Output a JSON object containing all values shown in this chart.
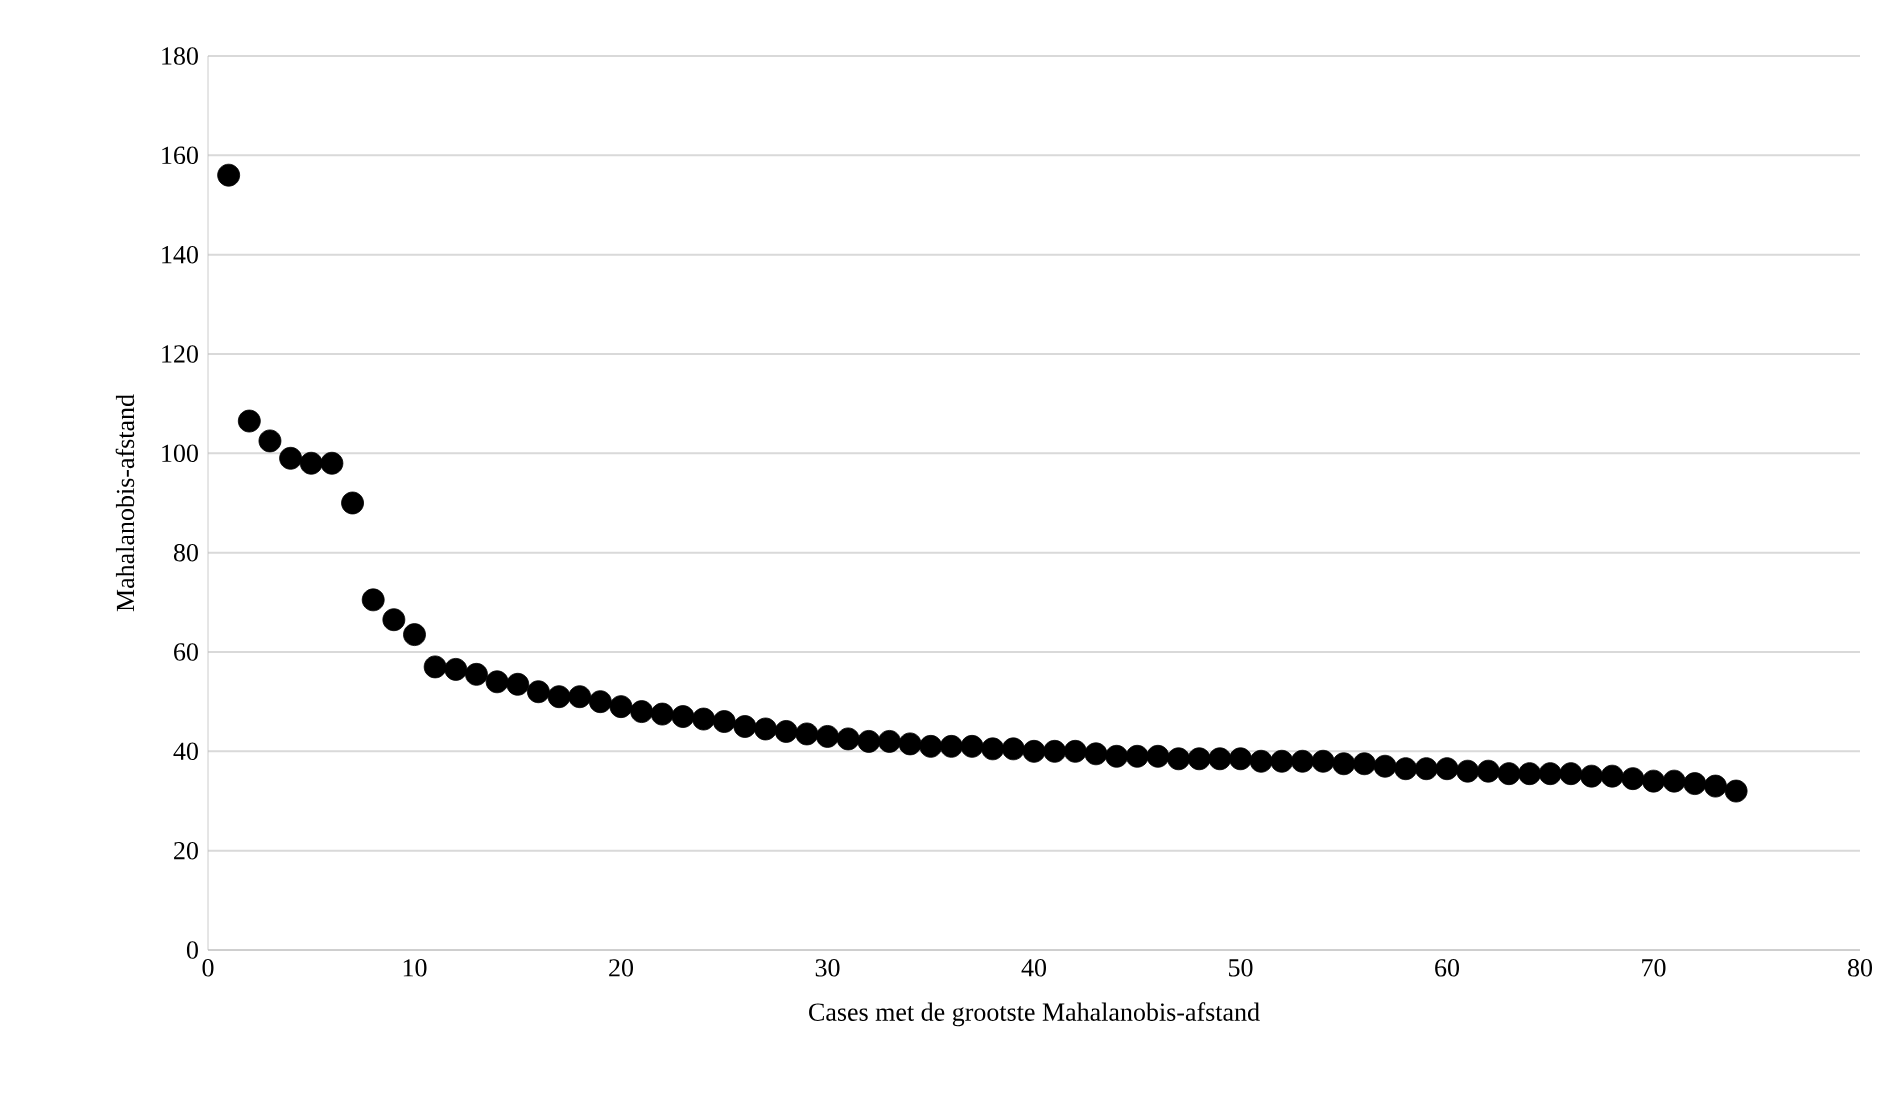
{
  "chart_data": {
    "type": "scatter",
    "xlabel": "Cases met de grootste Mahalanobis-afstand",
    "ylabel": "Mahalanobis-afstand",
    "x": [
      1,
      2,
      3,
      4,
      5,
      6,
      7,
      8,
      9,
      10,
      11,
      12,
      13,
      14,
      15,
      16,
      17,
      18,
      19,
      20,
      21,
      22,
      23,
      24,
      25,
      26,
      27,
      28,
      29,
      30,
      31,
      32,
      33,
      34,
      35,
      36,
      37,
      38,
      39,
      40,
      41,
      42,
      43,
      44,
      45,
      46,
      47,
      48,
      49,
      50,
      51,
      52,
      53,
      54,
      55,
      56,
      57,
      58,
      59,
      60,
      61,
      62,
      63,
      64,
      65,
      66,
      67,
      68,
      69,
      70,
      71,
      72,
      73,
      74
    ],
    "series": [
      {
        "color": "#000000",
        "values": [
          156,
          106.5,
          102.5,
          99,
          98,
          98,
          90,
          70.5,
          66.5,
          63.5,
          57,
          56.5,
          55.5,
          54,
          53.5,
          52,
          51,
          51,
          50,
          49,
          48,
          47.5,
          47,
          46.5,
          46,
          45,
          44.5,
          44,
          43.5,
          43,
          42.5,
          42,
          42,
          41.5,
          41,
          41,
          41,
          40.5,
          40.5,
          40,
          40,
          40,
          39.5,
          39,
          39,
          39,
          38.5,
          38.5,
          38.5,
          38.5,
          38,
          38,
          38,
          38,
          37.5,
          37.5,
          37,
          36.5,
          36.5,
          36.5,
          36,
          36,
          35.5,
          35.5,
          35.5,
          35.5,
          35,
          35,
          34.5,
          34,
          34,
          33.5,
          33,
          32
        ]
      }
    ],
    "xlim": [
      0,
      80
    ],
    "ylim": [
      0,
      180
    ],
    "xticks": [
      0,
      10,
      20,
      30,
      40,
      50,
      60,
      70,
      80
    ],
    "yticks": [
      0,
      20,
      40,
      60,
      80,
      100,
      120,
      140,
      160,
      180
    ],
    "grid": "y",
    "marker": "circle",
    "legend": false
  }
}
